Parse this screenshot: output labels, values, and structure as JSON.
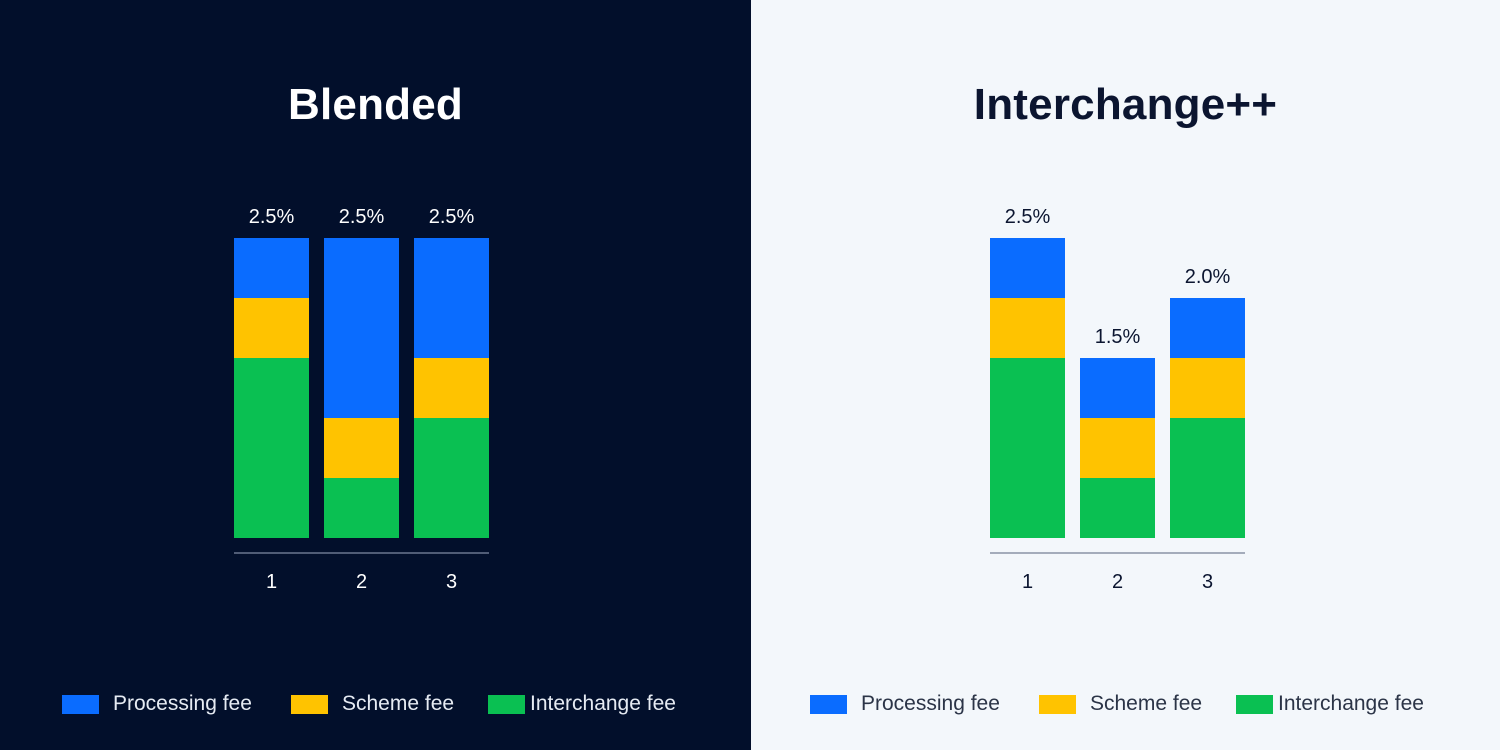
{
  "colors": {
    "processing": "#0a6cff",
    "scheme": "#ffc300",
    "interchange": "#0ac052",
    "dark_bg": "#020f2b",
    "light_bg": "#f3f7fb"
  },
  "legend": [
    {
      "key": "processing",
      "label": "Processing fee"
    },
    {
      "key": "scheme",
      "label": "Scheme fee"
    },
    {
      "key": "interchange",
      "label": "Interchange fee"
    }
  ],
  "chart_data": [
    {
      "type": "bar",
      "stacked": true,
      "title": "Blended",
      "categories": [
        "1",
        "2",
        "3"
      ],
      "series": [
        {
          "name": "Interchange fee",
          "key": "interchange",
          "values": [
            1.5,
            0.5,
            1.0
          ]
        },
        {
          "name": "Scheme fee",
          "key": "scheme",
          "values": [
            0.5,
            0.5,
            0.5
          ]
        },
        {
          "name": "Processing fee",
          "key": "processing",
          "values": [
            0.5,
            1.5,
            1.0
          ]
        }
      ],
      "totals": [
        "2.5%",
        "2.5%",
        "2.5%"
      ],
      "ylim": [
        0,
        2.5
      ],
      "grid": false,
      "legend_position": "bottom"
    },
    {
      "type": "bar",
      "stacked": true,
      "title": "Interchange++",
      "categories": [
        "1",
        "2",
        "3"
      ],
      "series": [
        {
          "name": "Interchange fee",
          "key": "interchange",
          "values": [
            1.5,
            0.5,
            1.0
          ]
        },
        {
          "name": "Scheme fee",
          "key": "scheme",
          "values": [
            0.5,
            0.5,
            0.5
          ]
        },
        {
          "name": "Processing fee",
          "key": "processing",
          "values": [
            0.5,
            0.5,
            0.5
          ]
        }
      ],
      "totals": [
        "2.5%",
        "1.5%",
        "2.0%"
      ],
      "ylim": [
        0,
        2.5
      ],
      "grid": false,
      "legend_position": "bottom"
    }
  ]
}
